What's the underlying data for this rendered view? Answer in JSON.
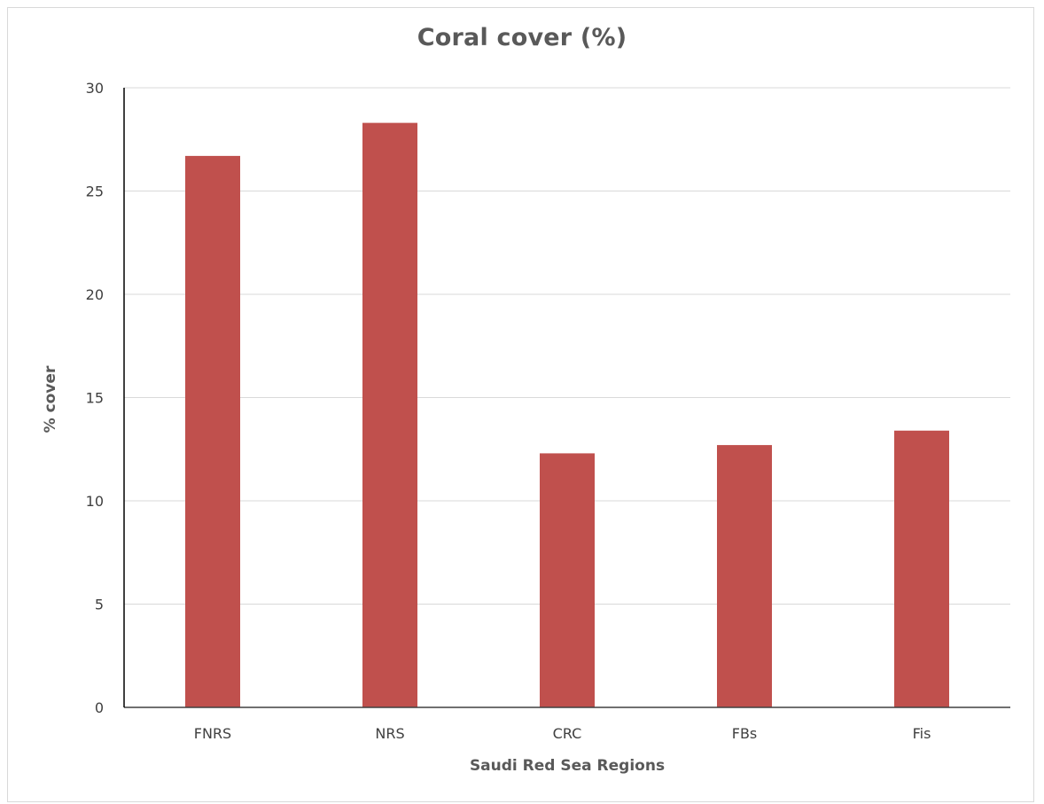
{
  "chart_data": {
    "type": "bar",
    "title": "Coral cover (%)",
    "xlabel": "Saudi Red Sea Regions",
    "ylabel": "% cover",
    "categories": [
      "FNRS",
      "NRS",
      "CRC",
      "FBs",
      "Fis"
    ],
    "values": [
      26.7,
      28.3,
      12.3,
      12.7,
      13.4
    ],
    "ylim": [
      0,
      30
    ],
    "yticks": [
      0,
      5,
      10,
      15,
      20,
      25,
      30
    ],
    "grid": true,
    "legend": "none",
    "bar_color": "#c0504d"
  }
}
